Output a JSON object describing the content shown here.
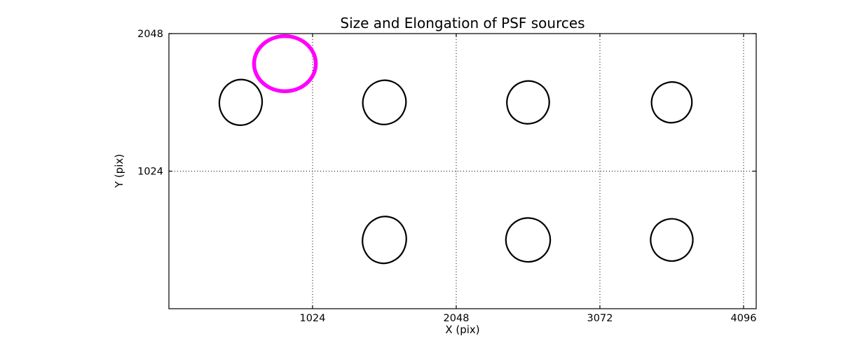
{
  "figure": {
    "title": "Size and Elongation of PSF sources",
    "xlabel": "X (pix)",
    "ylabel": "Y (pix)"
  },
  "chart_data": {
    "type": "scatter",
    "title": "Size and Elongation of PSF sources",
    "xlabel": "X (pix)",
    "ylabel": "Y (pix)",
    "xlim": [
      0,
      4186
    ],
    "ylim": [
      0,
      2048
    ],
    "xticks": [
      1024,
      2048,
      3072,
      4096
    ],
    "yticks": [
      1024,
      2048
    ],
    "grid": {
      "style": "dotted",
      "x_values": [
        1024,
        2048,
        3072,
        4096
      ],
      "y_values": [
        1024
      ]
    },
    "legend": "none",
    "colors": {
      "ellipse_stroke": "#000000",
      "highlight_stroke": "#ff00ff",
      "grid_stroke": "#000000",
      "spine_stroke": "#000000",
      "background": "#ffffff"
    },
    "line_widths": {
      "ellipse": 2.2,
      "highlight": 5.5,
      "spine": 1.2,
      "grid": 1
    },
    "sources": [
      {
        "x": 512,
        "y": 1536,
        "a": 152,
        "b": 170,
        "angle": 10,
        "highlight": false
      },
      {
        "x": 1536,
        "y": 1536,
        "a": 153,
        "b": 165,
        "angle": 20,
        "highlight": false
      },
      {
        "x": 2560,
        "y": 1536,
        "a": 150,
        "b": 160,
        "angle": 30,
        "highlight": false
      },
      {
        "x": 3584,
        "y": 1536,
        "a": 143,
        "b": 152,
        "angle": 30,
        "highlight": false
      },
      {
        "x": 1536,
        "y": 512,
        "a": 155,
        "b": 175,
        "angle": 15,
        "highlight": false
      },
      {
        "x": 2560,
        "y": 512,
        "a": 158,
        "b": 163,
        "angle": 10,
        "highlight": false
      },
      {
        "x": 3584,
        "y": 512,
        "a": 150,
        "b": 157,
        "angle": 25,
        "highlight": false
      },
      {
        "x": 827,
        "y": 1824,
        "a": 220,
        "b": 205,
        "angle": 0,
        "highlight": true
      }
    ]
  }
}
